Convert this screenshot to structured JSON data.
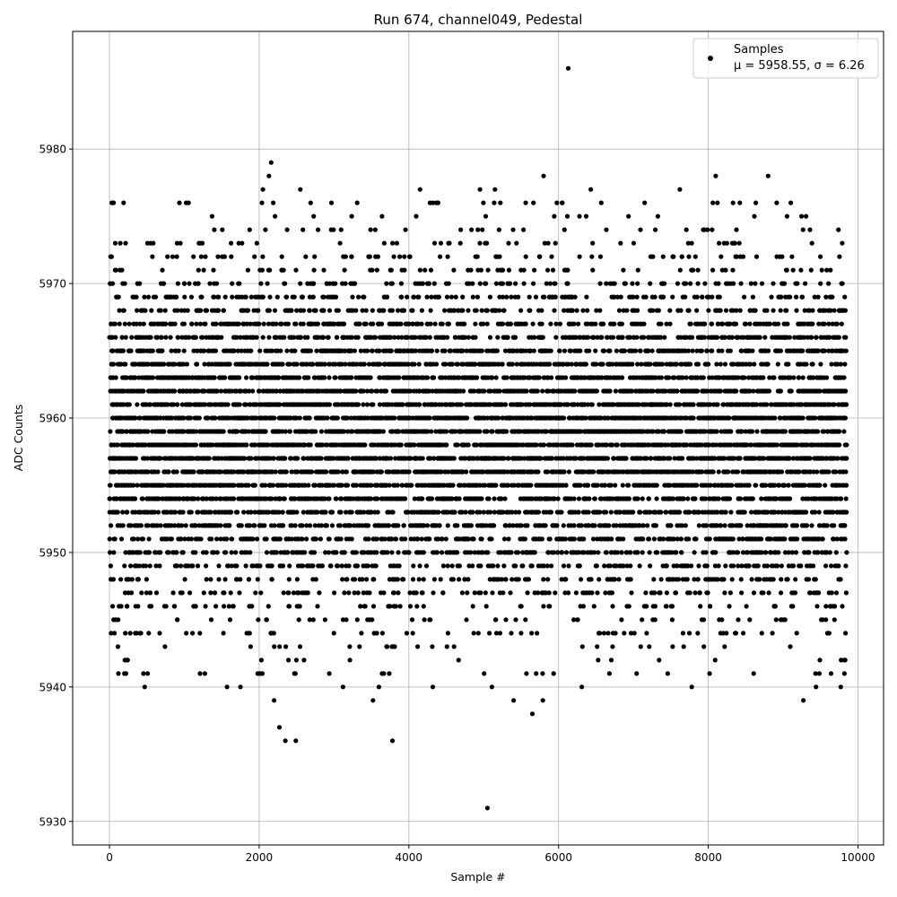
{
  "chart_data": {
    "type": "scatter",
    "title": "Run 674, channel049, Pedestal",
    "xlabel": "Sample #",
    "ylabel": "ADC Counts",
    "xlim": [
      -492,
      10342
    ],
    "ylim": [
      5928.25,
      5988.75
    ],
    "xticks": [
      0,
      2000,
      4000,
      6000,
      8000,
      10000
    ],
    "yticks": [
      5930,
      5940,
      5950,
      5960,
      5970,
      5980
    ],
    "grid": true,
    "legend": {
      "placement": "top-right",
      "entries": [
        "Samples",
        "μ = 5958.55, σ = 6.26"
      ]
    },
    "series": [
      {
        "name": "Samples",
        "color": "#000000",
        "marker": "circle",
        "n_points": 9851,
        "x_range": [
          0,
          9850
        ],
        "mean": 5958.55,
        "sigma": 6.26,
        "value_range": [
          5931,
          5986
        ],
        "notable_points": [
          {
            "x": 6130,
            "y": 5986
          },
          {
            "x": 5050,
            "y": 5931
          },
          {
            "x": 2160,
            "y": 5979
          },
          {
            "x": 2130,
            "y": 5978
          },
          {
            "x": 5800,
            "y": 5978
          },
          {
            "x": 8100,
            "y": 5978
          },
          {
            "x": 8800,
            "y": 5978
          },
          {
            "x": 2050,
            "y": 5977
          },
          {
            "x": 2550,
            "y": 5977
          },
          {
            "x": 4150,
            "y": 5977
          },
          {
            "x": 4950,
            "y": 5977
          },
          {
            "x": 5150,
            "y": 5977
          },
          {
            "x": 6430,
            "y": 5977
          },
          {
            "x": 7620,
            "y": 5977
          },
          {
            "x": 2270,
            "y": 5937
          },
          {
            "x": 2350,
            "y": 5936
          },
          {
            "x": 2490,
            "y": 5936
          },
          {
            "x": 3780,
            "y": 5936
          },
          {
            "x": 5650,
            "y": 5938
          },
          {
            "x": 2200,
            "y": 5939
          },
          {
            "x": 3520,
            "y": 5939
          },
          {
            "x": 5400,
            "y": 5939
          },
          {
            "x": 5790,
            "y": 5939
          },
          {
            "x": 9270,
            "y": 5939
          },
          {
            "x": 470,
            "y": 5940
          },
          {
            "x": 1570,
            "y": 5940
          },
          {
            "x": 1750,
            "y": 5940
          },
          {
            "x": 3120,
            "y": 5940
          },
          {
            "x": 3600,
            "y": 5940
          },
          {
            "x": 4320,
            "y": 5940
          },
          {
            "x": 5110,
            "y": 5940
          },
          {
            "x": 6310,
            "y": 5940
          },
          {
            "x": 7780,
            "y": 5940
          },
          {
            "x": 9440,
            "y": 5940
          },
          {
            "x": 9770,
            "y": 5940
          }
        ]
      }
    ]
  }
}
